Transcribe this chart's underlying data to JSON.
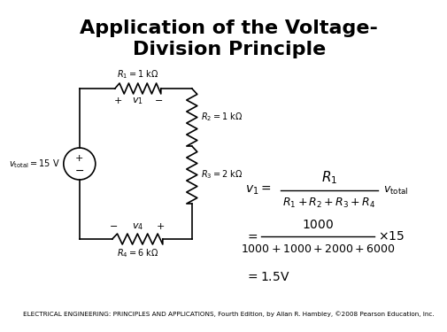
{
  "title_line1": "Application of the Voltage-",
  "title_line2": "Division Principle",
  "title_fontsize": 16,
  "bg_color": "#ffffff",
  "footer_text": "ELECTRICAL ENGINEERING: PRINCIPLES AND APPLICATIONS, Fourth Edition, by Allan R. Hambley, ©2008 Pearson Education, Inc.",
  "footer_fontsize": 5.2,
  "circuit": {
    "source_label": "$v_{\\mathrm{total}} = 15\\ \\mathrm{V}$",
    "R1_label": "$R_1 = 1\\ \\mathrm{k\\Omega}$",
    "R2_label": "$R_2 = 1\\ \\mathrm{k\\Omega}$",
    "R3_label": "$R_3 = 2\\ \\mathrm{k\\Omega}$",
    "R4_label": "$R_4 = 6\\ \\mathrm{k\\Omega}$"
  }
}
